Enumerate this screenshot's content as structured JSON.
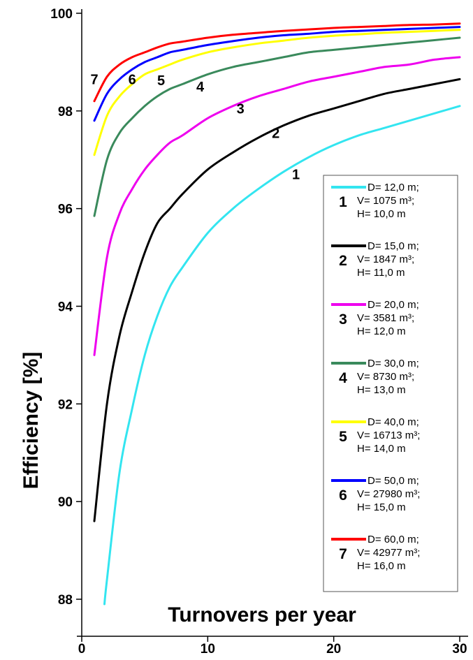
{
  "chart_data": {
    "type": "line",
    "xlabel": "Turnovers per year",
    "ylabel": "Efficiency [%]",
    "xlim": [
      0,
      30
    ],
    "ylim": [
      87.5,
      100
    ],
    "x_ticks": [
      "0",
      "10",
      "20",
      "30"
    ],
    "y_ticks": [
      "88",
      "90",
      "92",
      "94",
      "96",
      "98",
      "100"
    ],
    "grid": false,
    "legend_position": "right",
    "series": [
      {
        "name": "1",
        "color": "#33e5f0",
        "legend": [
          "D= 12,0 m;",
          "V= 1075 m³;",
          "H= 10,0 m"
        ],
        "label_at": [
          17,
          96.7
        ],
        "x": [
          1.8,
          2,
          3,
          4,
          5,
          6,
          7,
          8,
          10,
          12,
          14,
          16,
          18,
          20,
          22,
          24,
          26,
          28,
          30
        ],
        "y": [
          87.9,
          88.4,
          90.6,
          91.9,
          93.0,
          93.8,
          94.4,
          94.8,
          95.5,
          96.0,
          96.4,
          96.75,
          97.05,
          97.3,
          97.5,
          97.65,
          97.8,
          97.95,
          98.1
        ]
      },
      {
        "name": "2",
        "color": "#000000",
        "legend": [
          "D= 15,0 m;",
          "V= 1847 m³;",
          "H= 11,0 m"
        ],
        "label_at": [
          15.4,
          97.55
        ],
        "x": [
          1,
          2,
          3,
          4,
          5,
          6,
          7,
          8,
          10,
          12,
          14,
          16,
          18,
          20,
          22,
          24,
          26,
          28,
          30
        ],
        "y": [
          89.6,
          92.0,
          93.4,
          94.3,
          95.1,
          95.7,
          96.0,
          96.3,
          96.8,
          97.15,
          97.45,
          97.7,
          97.9,
          98.05,
          98.2,
          98.35,
          98.45,
          98.55,
          98.65
        ]
      },
      {
        "name": "3",
        "color": "#ee00ee",
        "legend": [
          "D= 20,0 m;",
          "V= 3581 m³;",
          "H= 12,0 m"
        ],
        "label_at": [
          12.6,
          98.05
        ],
        "x": [
          1,
          2,
          3,
          4,
          5,
          6,
          7,
          8,
          10,
          12,
          14,
          16,
          18,
          20,
          22,
          24,
          26,
          28,
          30
        ],
        "y": [
          93.0,
          95.0,
          95.9,
          96.4,
          96.8,
          97.1,
          97.35,
          97.5,
          97.85,
          98.1,
          98.3,
          98.45,
          98.6,
          98.7,
          98.8,
          98.9,
          98.95,
          99.05,
          99.1
        ]
      },
      {
        "name": "4",
        "color": "#3a8a5c",
        "legend": [
          "D= 30,0 m;",
          "V= 8730 m³;",
          "H= 13,0 m"
        ],
        "label_at": [
          9.4,
          98.5
        ],
        "x": [
          1,
          2,
          3,
          4,
          5,
          6,
          7,
          8,
          10,
          12,
          14,
          16,
          18,
          20,
          22,
          24,
          26,
          28,
          30
        ],
        "y": [
          95.85,
          97.0,
          97.55,
          97.85,
          98.1,
          98.3,
          98.45,
          98.55,
          98.75,
          98.9,
          99.0,
          99.1,
          99.2,
          99.25,
          99.3,
          99.35,
          99.4,
          99.45,
          99.5
        ]
      },
      {
        "name": "5",
        "color": "#ffff00",
        "legend": [
          "D= 40,0 m;",
          "V= 16713 m³;",
          "H= 14,0 m"
        ],
        "label_at": [
          6.3,
          98.63
        ],
        "x": [
          1,
          2,
          3,
          4,
          5,
          6,
          7,
          8,
          10,
          12,
          14,
          16,
          18,
          20,
          22,
          24,
          26,
          28,
          30
        ],
        "y": [
          97.1,
          97.9,
          98.3,
          98.55,
          98.75,
          98.85,
          98.95,
          99.05,
          99.2,
          99.3,
          99.38,
          99.44,
          99.5,
          99.54,
          99.57,
          99.6,
          99.62,
          99.64,
          99.66
        ]
      },
      {
        "name": "6",
        "color": "#0000ff",
        "legend": [
          "D= 50,0 m;",
          "V= 27980 m³;",
          "H= 15,0 m"
        ],
        "label_at": [
          4.0,
          98.65
        ],
        "x": [
          1,
          2,
          3,
          4,
          5,
          6,
          7,
          8,
          10,
          12,
          14,
          16,
          18,
          20,
          22,
          24,
          26,
          28,
          30
        ],
        "y": [
          97.8,
          98.35,
          98.65,
          98.85,
          99.0,
          99.1,
          99.2,
          99.25,
          99.35,
          99.43,
          99.5,
          99.55,
          99.58,
          99.62,
          99.64,
          99.66,
          99.68,
          99.7,
          99.72
        ]
      },
      {
        "name": "7",
        "color": "#ff0000",
        "legend": [
          "D= 60,0 m;",
          "V= 42977 m³;",
          "H= 16,0 m"
        ],
        "label_at": [
          1.0,
          98.65
        ],
        "x": [
          1,
          2,
          3,
          4,
          5,
          6,
          7,
          8,
          10,
          12,
          14,
          16,
          18,
          20,
          22,
          24,
          26,
          28,
          30
        ],
        "y": [
          98.2,
          98.7,
          98.95,
          99.1,
          99.2,
          99.3,
          99.38,
          99.42,
          99.5,
          99.56,
          99.6,
          99.64,
          99.67,
          99.7,
          99.72,
          99.74,
          99.76,
          99.77,
          99.79
        ]
      }
    ]
  }
}
